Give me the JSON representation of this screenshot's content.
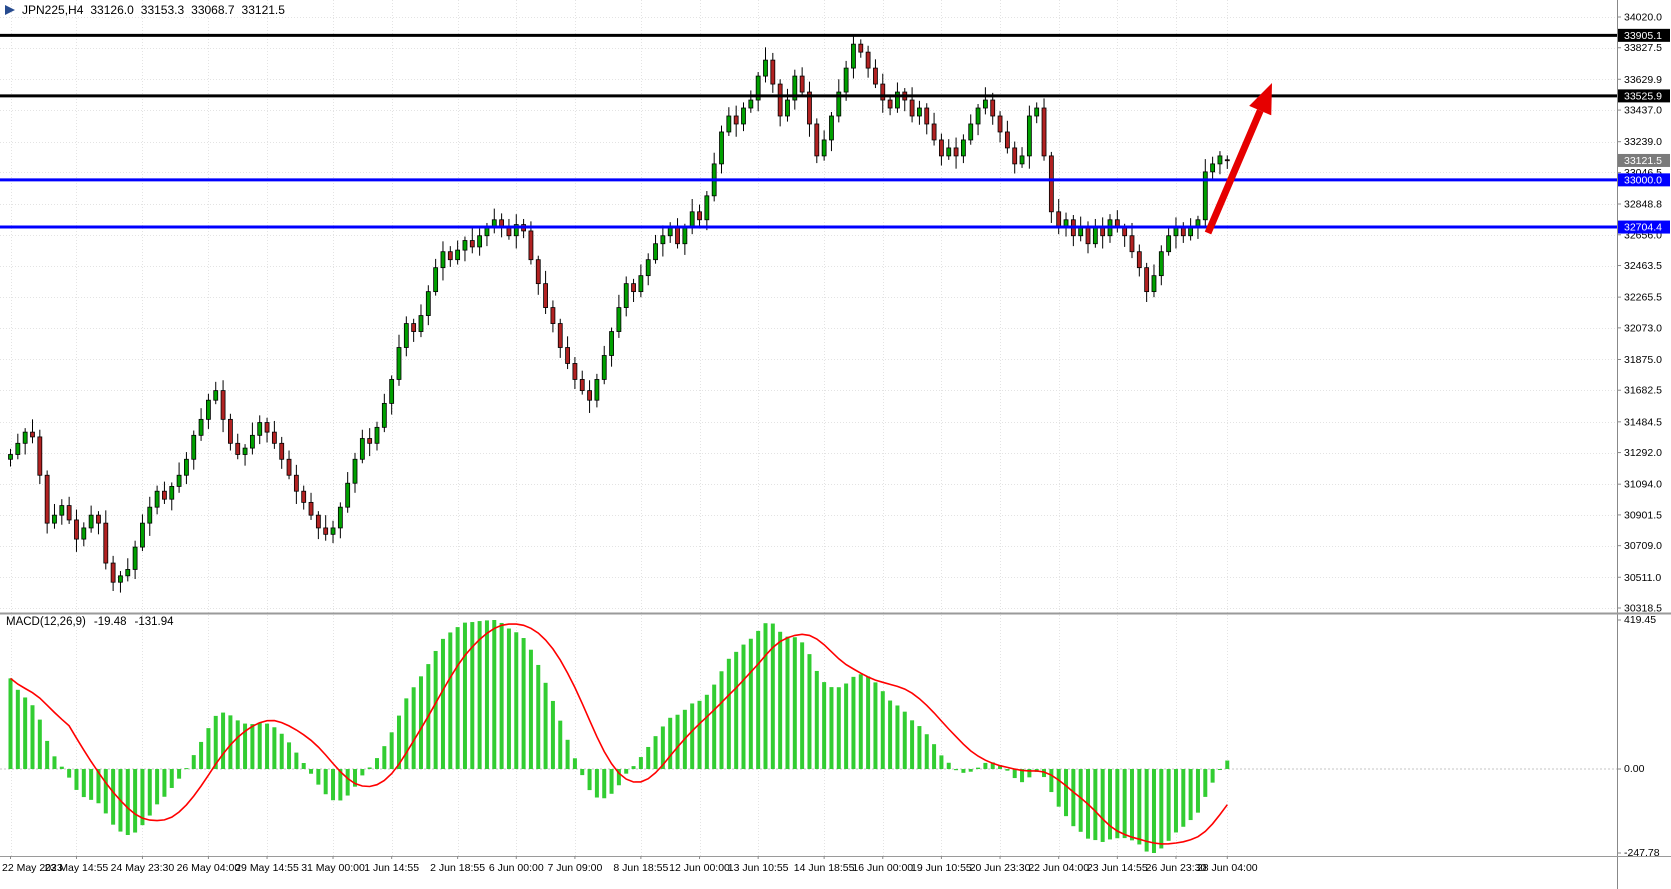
{
  "title": {
    "symbol_period": "JPN225,H4",
    "open": "33126.0",
    "high": "33153.3",
    "low": "33068.7",
    "close": "33121.5"
  },
  "colors": {
    "background": "#FFFFFF",
    "bull": "#00A000",
    "bear": "#B22222",
    "outline": "#000000",
    "grid": "#E3E3E3",
    "axis_text": "#000000",
    "axis_border": "#888888"
  },
  "chart_data": {
    "type": "candlestick",
    "symbol": "JPN225",
    "timeframe": "H4",
    "price_axis": {
      "min": 30318.5,
      "max": 34020.0,
      "ticks": [
        {
          "value": 34020.0,
          "label": "34020.0"
        },
        {
          "value": 33827.5,
          "label": "33827.5"
        },
        {
          "value": 33629.9,
          "label": "33629.9"
        },
        {
          "value": 33437.0,
          "label": "33437.0"
        },
        {
          "value": 33239.0,
          "label": "33239.0"
        },
        {
          "value": 33046.5,
          "label": "33046.5"
        },
        {
          "value": 32848.8,
          "label": "32848.8"
        },
        {
          "value": 32656.0,
          "label": "32656.0"
        },
        {
          "value": 32463.5,
          "label": "32463.5"
        },
        {
          "value": 32265.5,
          "label": "32265.5"
        },
        {
          "value": 32073.0,
          "label": "32073.0"
        },
        {
          "value": 31875.0,
          "label": "31875.0"
        },
        {
          "value": 31682.5,
          "label": "31682.5"
        },
        {
          "value": 31484.5,
          "label": "31484.5"
        },
        {
          "value": 31292.0,
          "label": "31292.0"
        },
        {
          "value": 31094.0,
          "label": "31094.0"
        },
        {
          "value": 30901.5,
          "label": "30901.5"
        },
        {
          "value": 30709.0,
          "label": "30709.0"
        },
        {
          "value": 30511.0,
          "label": "30511.0"
        },
        {
          "value": 30318.5,
          "label": "30318.5"
        }
      ]
    },
    "price_tags": [
      {
        "value": 33905.1,
        "label": "33905.1",
        "bg": "#000000"
      },
      {
        "value": 33525.9,
        "label": "33525.9",
        "bg": "#000000"
      },
      {
        "value": 33121.5,
        "label": "33121.5",
        "bg": "#7B7B7B"
      },
      {
        "value": 33000.0,
        "label": "33000.0",
        "bg": "#0000FF"
      },
      {
        "value": 32704.4,
        "label": "32704.4",
        "bg": "#0000FF"
      }
    ],
    "hlines": [
      {
        "value": 33905.1,
        "label": "33905.1",
        "color": "#000000",
        "width": 3
      },
      {
        "value": 33525.9,
        "label": "33525.9",
        "color": "#000000",
        "width": 3
      },
      {
        "value": 33000.0,
        "label": "33000.0",
        "color": "#0000FF",
        "width": 3
      },
      {
        "value": 32704.4,
        "label": "32704.4",
        "color": "#0000FF",
        "width": 3
      }
    ],
    "time_labels": [
      {
        "index": 0,
        "label": "22 May 2023"
      },
      {
        "index": 9,
        "label": "23 May 14:55"
      },
      {
        "index": 18,
        "label": "24 May 23:30"
      },
      {
        "index": 27,
        "label": "26 May 04:00"
      },
      {
        "index": 35,
        "label": "29 May 14:55"
      },
      {
        "index": 44,
        "label": "31 May 00:00"
      },
      {
        "index": 52,
        "label": "1 Jun 14:55"
      },
      {
        "index": 61,
        "label": "2 Jun 18:55"
      },
      {
        "index": 69,
        "label": "6 Jun 00:00"
      },
      {
        "index": 77,
        "label": "7 Jun 09:00"
      },
      {
        "index": 86,
        "label": "8 Jun 18:55"
      },
      {
        "index": 94,
        "label": "12 Jun 00:00"
      },
      {
        "index": 102,
        "label": "13 Jun 10:55"
      },
      {
        "index": 111,
        "label": "14 Jun 18:55"
      },
      {
        "index": 119,
        "label": "16 Jun 00:00"
      },
      {
        "index": 127,
        "label": "19 Jun 10:55"
      },
      {
        "index": 135,
        "label": "20 Jun 23:30"
      },
      {
        "index": 143,
        "label": "22 Jun 04:00"
      },
      {
        "index": 151,
        "label": "23 Jun 14:55"
      },
      {
        "index": 159,
        "label": "26 Jun 23:30"
      },
      {
        "index": 166,
        "label": "28 Jun 04:00"
      }
    ],
    "candles": [
      [
        31250,
        31315,
        31205,
        31280
      ],
      [
        31280,
        31410,
        31250,
        31350
      ],
      [
        31350,
        31445,
        31280,
        31420
      ],
      [
        31420,
        31500,
        31350,
        31390
      ],
      [
        31390,
        31435,
        31095,
        31150
      ],
      [
        31150,
        31180,
        30785,
        30850
      ],
      [
        30850,
        30970,
        30815,
        30900
      ],
      [
        30900,
        31000,
        30840,
        30960
      ],
      [
        30960,
        31015,
        30845,
        30870
      ],
      [
        30870,
        30935,
        30670,
        30750
      ],
      [
        30750,
        30855,
        30705,
        30820
      ],
      [
        30820,
        30960,
        30790,
        30900
      ],
      [
        30900,
        30925,
        30780,
        30850
      ],
      [
        30850,
        30930,
        30560,
        30600
      ],
      [
        30600,
        30645,
        30425,
        30480
      ],
      [
        30480,
        30550,
        30415,
        30520
      ],
      [
        30520,
        30630,
        30485,
        30560
      ],
      [
        30560,
        30740,
        30500,
        30700
      ],
      [
        30700,
        30905,
        30675,
        30850
      ],
      [
        30850,
        31015,
        30770,
        30950
      ],
      [
        30950,
        31085,
        30905,
        31050
      ],
      [
        31050,
        31110,
        30970,
        31000
      ],
      [
        31000,
        31105,
        30930,
        31080
      ],
      [
        31080,
        31230,
        31040,
        31150
      ],
      [
        31150,
        31295,
        31095,
        31250
      ],
      [
        31250,
        31430,
        31185,
        31400
      ],
      [
        31400,
        31570,
        31365,
        31500
      ],
      [
        31500,
        31660,
        31440,
        31620
      ],
      [
        31620,
        31735,
        31595,
        31680
      ],
      [
        31680,
        31745,
        31420,
        31500
      ],
      [
        31500,
        31535,
        31305,
        31350
      ],
      [
        31350,
        31410,
        31250,
        31280
      ],
      [
        31280,
        31345,
        31210,
        31320
      ],
      [
        31320,
        31480,
        31280,
        31400
      ],
      [
        31400,
        31525,
        31345,
        31480
      ],
      [
        31480,
        31510,
        31355,
        31420
      ],
      [
        31420,
        31490,
        31315,
        31350
      ],
      [
        31350,
        31390,
        31190,
        31250
      ],
      [
        31250,
        31305,
        31125,
        31150
      ],
      [
        31150,
        31215,
        30970,
        31050
      ],
      [
        31050,
        31085,
        30935,
        30980
      ],
      [
        30980,
        31040,
        30870,
        30900
      ],
      [
        30900,
        30925,
        30750,
        30820
      ],
      [
        30820,
        30900,
        30740,
        30780
      ],
      [
        30780,
        30865,
        30725,
        30820
      ],
      [
        30820,
        30980,
        30755,
        30950
      ],
      [
        30950,
        31170,
        30915,
        31100
      ],
      [
        31100,
        31290,
        31040,
        31250
      ],
      [
        31250,
        31435,
        31225,
        31380
      ],
      [
        31380,
        31445,
        31270,
        31350
      ],
      [
        31350,
        31485,
        31305,
        31450
      ],
      [
        31450,
        31660,
        31420,
        31600
      ],
      [
        31600,
        31775,
        31530,
        31750
      ],
      [
        31750,
        32030,
        31710,
        31950
      ],
      [
        31950,
        32145,
        31895,
        32100
      ],
      [
        32100,
        32130,
        31985,
        32050
      ],
      [
        32050,
        32220,
        32015,
        32150
      ],
      [
        32150,
        32340,
        32090,
        32300
      ],
      [
        32300,
        32505,
        32275,
        32450
      ],
      [
        32450,
        32615,
        32370,
        32550
      ],
      [
        32550,
        32585,
        32455,
        32500
      ],
      [
        32500,
        32620,
        32470,
        32560
      ],
      [
        32560,
        32645,
        32490,
        32620
      ],
      [
        32620,
        32700,
        32540,
        32580
      ],
      [
        32580,
        32695,
        32525,
        32650
      ],
      [
        32650,
        32730,
        32585,
        32700
      ],
      [
        32700,
        32820,
        32665,
        32750
      ],
      [
        32750,
        32790,
        32640,
        32700
      ],
      [
        32700,
        32755,
        32625,
        32650
      ],
      [
        32650,
        32785,
        32570,
        32720
      ],
      [
        32720,
        32755,
        32635,
        32680
      ],
      [
        32680,
        32740,
        32470,
        32500
      ],
      [
        32500,
        32525,
        32280,
        32350
      ],
      [
        32350,
        32430,
        32160,
        32200
      ],
      [
        32200,
        32245,
        32045,
        32100
      ],
      [
        32100,
        32130,
        31885,
        31950
      ],
      [
        31950,
        32020,
        31815,
        31850
      ],
      [
        31850,
        31890,
        31690,
        31750
      ],
      [
        31750,
        31805,
        31655,
        31680
      ],
      [
        31680,
        31745,
        31540,
        31620
      ],
      [
        31620,
        31785,
        31575,
        31750
      ],
      [
        31750,
        31960,
        31720,
        31900
      ],
      [
        31900,
        32075,
        31830,
        32050
      ],
      [
        32050,
        32280,
        32010,
        32200
      ],
      [
        32200,
        32395,
        32145,
        32350
      ],
      [
        32350,
        32380,
        32235,
        32300
      ],
      [
        32300,
        32470,
        32265,
        32400
      ],
      [
        32400,
        32540,
        32340,
        32500
      ],
      [
        32500,
        32655,
        32475,
        32600
      ],
      [
        32600,
        32715,
        32520,
        32650
      ],
      [
        32650,
        32735,
        32605,
        32700
      ],
      [
        32700,
        32760,
        32570,
        32600
      ],
      [
        32600,
        32725,
        32530,
        32700
      ],
      [
        32700,
        32880,
        32660,
        32800
      ],
      [
        32800,
        32845,
        32695,
        32750
      ],
      [
        32750,
        32930,
        32685,
        32900
      ],
      [
        32900,
        33170,
        32865,
        33100
      ],
      [
        33100,
        33340,
        33040,
        33300
      ],
      [
        33300,
        33455,
        33275,
        33400
      ],
      [
        33400,
        33465,
        33270,
        33350
      ],
      [
        33350,
        33485,
        33305,
        33450
      ],
      [
        33450,
        33560,
        33420,
        33500
      ],
      [
        33500,
        33675,
        33430,
        33650
      ],
      [
        33650,
        33830,
        33610,
        33750
      ],
      [
        33750,
        33795,
        33545,
        33600
      ],
      [
        33600,
        33630,
        33335,
        33400
      ],
      [
        33400,
        33570,
        33365,
        33500
      ],
      [
        33500,
        33690,
        33440,
        33650
      ],
      [
        33650,
        33705,
        33525,
        33550
      ],
      [
        33550,
        33615,
        33270,
        33350
      ],
      [
        33350,
        33385,
        33105,
        33150
      ],
      [
        33150,
        33310,
        33120,
        33250
      ],
      [
        33250,
        33425,
        33180,
        33400
      ],
      [
        33400,
        33630,
        33360,
        33550
      ],
      [
        33550,
        33745,
        33495,
        33700
      ],
      [
        33700,
        33905,
        33635,
        33850
      ],
      [
        33850,
        33880,
        33765,
        33800
      ],
      [
        33800,
        33840,
        33640,
        33700
      ],
      [
        33700,
        33755,
        33575,
        33600
      ],
      [
        33600,
        33665,
        33420,
        33500
      ],
      [
        33500,
        33535,
        33405,
        33450
      ],
      [
        33450,
        33610,
        33420,
        33550
      ],
      [
        33550,
        33575,
        33430,
        33500
      ],
      [
        33500,
        33580,
        33360,
        33400
      ],
      [
        33400,
        33495,
        33345,
        33450
      ],
      [
        33450,
        33480,
        33285,
        33350
      ],
      [
        33350,
        33420,
        33215,
        33250
      ],
      [
        33250,
        33290,
        33090,
        33150
      ],
      [
        33150,
        33255,
        33125,
        33200
      ],
      [
        33200,
        33265,
        33070,
        33150
      ],
      [
        33150,
        33285,
        33105,
        33250
      ],
      [
        33250,
        33410,
        33220,
        33350
      ],
      [
        33350,
        33475,
        33280,
        33450
      ],
      [
        33450,
        33580,
        33410,
        33500
      ],
      [
        33500,
        33545,
        33345,
        33400
      ],
      [
        33400,
        33430,
        33235,
        33300
      ],
      [
        33300,
        33370,
        33165,
        33200
      ],
      [
        33200,
        33240,
        33040,
        33100
      ],
      [
        33100,
        33205,
        33075,
        33150
      ],
      [
        33150,
        33465,
        33070,
        33400
      ],
      [
        33400,
        33485,
        33355,
        33450
      ],
      [
        33450,
        33510,
        33120,
        33150
      ],
      [
        33150,
        33175,
        32730,
        32800
      ],
      [
        32800,
        32880,
        32660,
        32700
      ],
      [
        32700,
        32795,
        32645,
        32750
      ],
      [
        32750,
        32780,
        32585,
        32650
      ],
      [
        32650,
        32770,
        32615,
        32700
      ],
      [
        32700,
        32740,
        32540,
        32600
      ],
      [
        32600,
        32755,
        32575,
        32700
      ],
      [
        32700,
        32765,
        32570,
        32650
      ],
      [
        32650,
        32785,
        32605,
        32750
      ],
      [
        32750,
        32810,
        32670,
        32700
      ],
      [
        32700,
        32725,
        32580,
        32650
      ],
      [
        32650,
        32730,
        32510,
        32550
      ],
      [
        32550,
        32595,
        32395,
        32450
      ],
      [
        32450,
        32480,
        32235,
        32300
      ],
      [
        32300,
        32470,
        32265,
        32400
      ],
      [
        32400,
        32590,
        32340,
        32550
      ],
      [
        32550,
        32705,
        32525,
        32650
      ],
      [
        32650,
        32765,
        32570,
        32700
      ],
      [
        32700,
        32735,
        32605,
        32650
      ],
      [
        32650,
        32760,
        32620,
        32700
      ],
      [
        32700,
        32775,
        32630,
        32750
      ],
      [
        32750,
        33130,
        32710,
        33050
      ],
      [
        33050,
        33145,
        32995,
        33100
      ],
      [
        33100,
        33180,
        33035,
        33150
      ],
      [
        33126,
        33153.3,
        33068.7,
        33121.5
      ]
    ],
    "macd": {
      "label": "MACD(12,26,9)",
      "main_value": "-19.48",
      "signal_value": "-131.94",
      "params": [
        12,
        26,
        9
      ],
      "ticks": [
        "419.45",
        "0.00",
        "-247.78"
      ],
      "histogram_color": "#32CD32",
      "signal_color": "#FF0000"
    },
    "arrow": {
      "from": [
        1208,
        233
      ],
      "to": [
        1272,
        83
      ],
      "color": "#E60000"
    }
  }
}
